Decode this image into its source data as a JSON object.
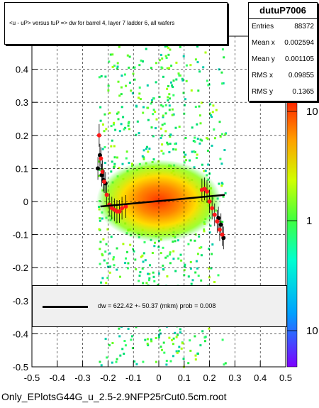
{
  "chart_data": {
    "type": "heatmap",
    "title": "<u - uP>       versus  tuP =>  dw for barrel 4, layer 7 ladder 6, all wafers",
    "xlabel": "",
    "ylabel": "",
    "xlim": [
      -0.5,
      0.5
    ],
    "ylim": [
      -0.5,
      0.5
    ],
    "x_ticks": [
      "-0.5",
      "-0.4",
      "-0.3",
      "-0.2",
      "-0.1",
      "0",
      "0.1",
      "0.2",
      "0.3",
      "0.4",
      "0.5"
    ],
    "y_ticks": [
      "-0.5",
      "-0.4",
      "-0.3",
      "-0.2",
      "-0.1",
      "0",
      "0.1",
      "0.2",
      "0.3",
      "0.4",
      "0.5"
    ],
    "color_scale": {
      "scale": "log",
      "labels": [
        "10",
        "1",
        "10"
      ]
    },
    "grid": true,
    "profile_red": {
      "x": [
        -0.235,
        -0.228,
        -0.222,
        -0.215,
        -0.205,
        -0.195,
        -0.185,
        -0.175,
        -0.165,
        -0.155,
        -0.145,
        -0.13,
        0.17,
        0.18,
        0.19,
        0.2,
        0.21,
        0.22,
        0.23,
        0.24,
        0.25
      ],
      "y": [
        0.2,
        0.13,
        0.09,
        0.06,
        0.02,
        -0.01,
        -0.02,
        -0.025,
        -0.03,
        -0.03,
        -0.02,
        -0.015,
        0.035,
        0.038,
        0.03,
        0.0,
        -0.02,
        -0.04,
        -0.06,
        -0.085,
        -0.1
      ]
    },
    "profile_black": {
      "x": [
        -0.24,
        -0.232,
        -0.225,
        -0.218,
        -0.21,
        0.235,
        0.245,
        0.255
      ],
      "y": [
        0.1,
        0.14,
        0.08,
        0.065,
        0.055,
        -0.05,
        -0.07,
        -0.11
      ]
    },
    "fit_line": {
      "x": [
        -0.23,
        0.26
      ],
      "y": [
        -0.015,
        0.02
      ]
    },
    "stats": {
      "name": "dutuP7006",
      "entries_label": "Entries",
      "entries": "88372",
      "mean_x_label": "Mean x",
      "mean_x": "0.002594",
      "mean_y_label": "Mean y",
      "mean_y": "0.001105",
      "rms_x_label": "RMS x",
      "rms_x": "0.09855",
      "rms_y_label": "RMS y",
      "rms_y": "0.1365"
    },
    "fit_text": "dw =  622.42 +- 50.37 (mkm) prob = 0.008"
  },
  "footer": "Only_EPlotsG44G_u_2.5-2.9NFP25rCut0.5cm.root"
}
